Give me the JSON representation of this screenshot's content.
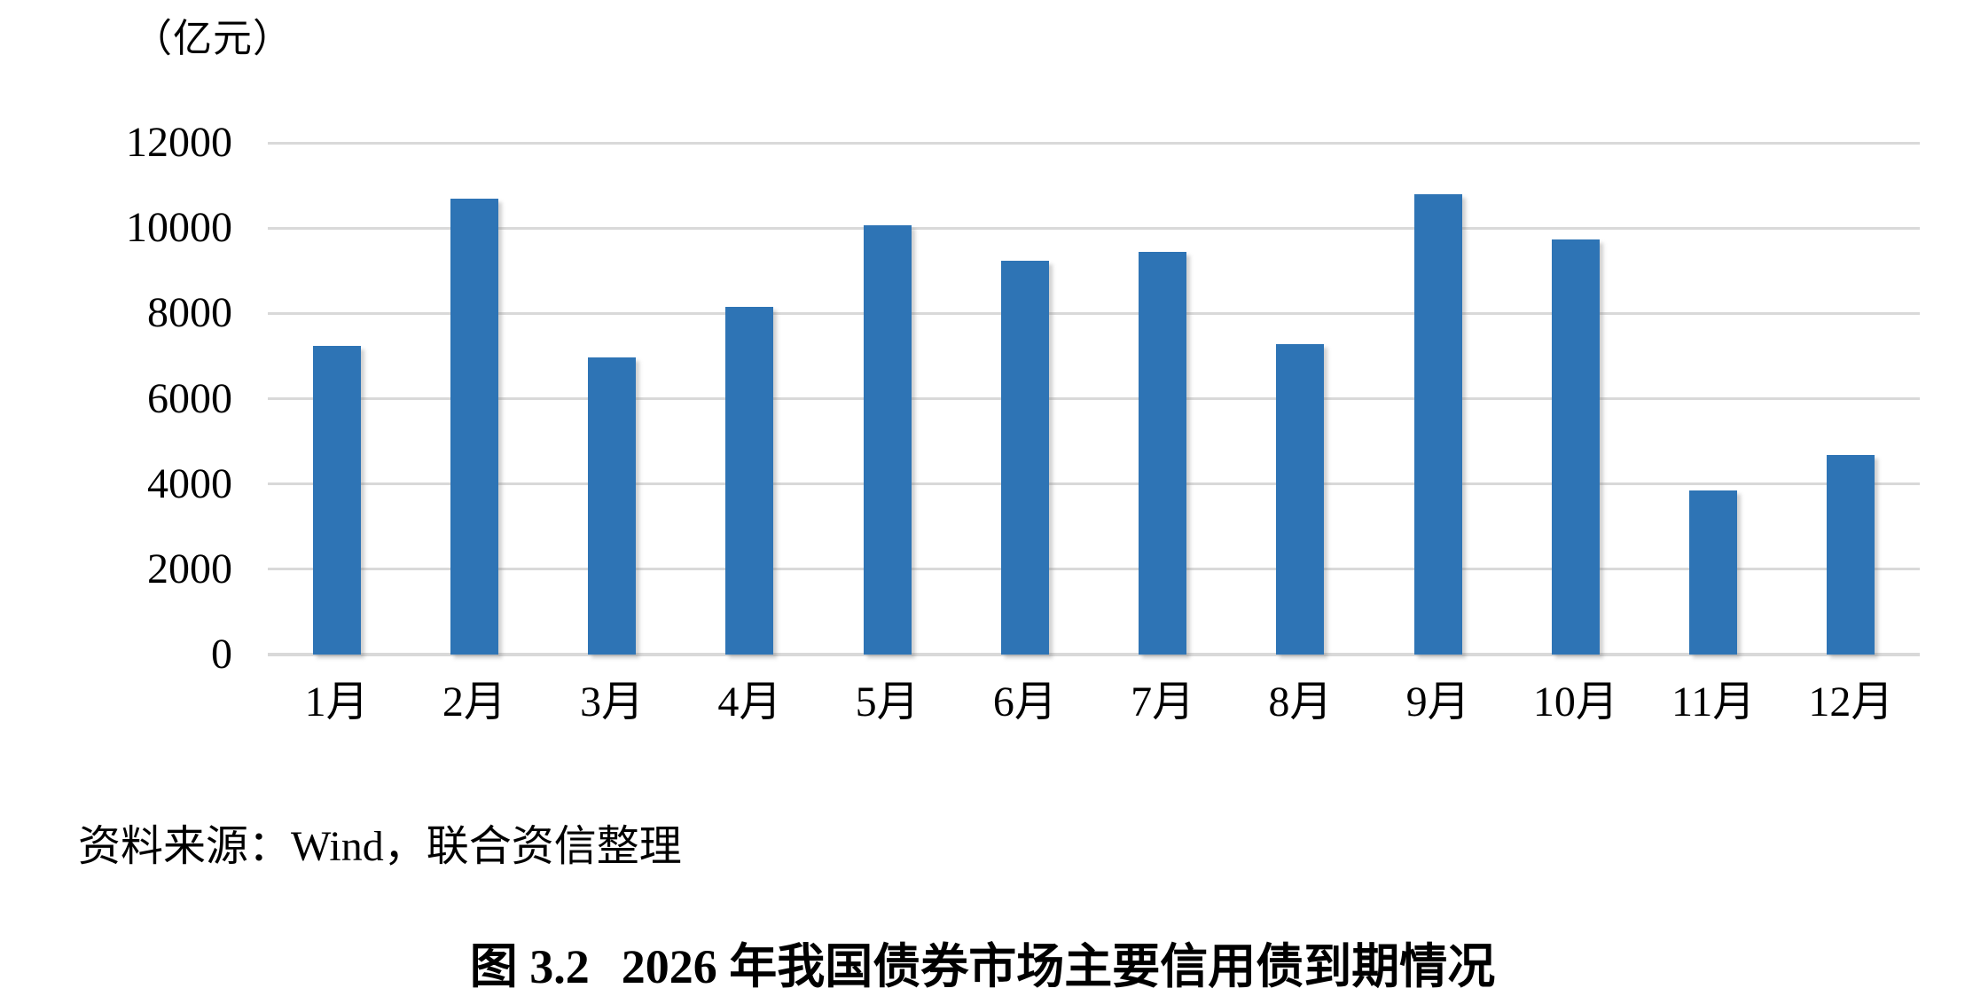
{
  "chart_data": {
    "type": "bar",
    "title": "",
    "unit_label": "（亿元）",
    "xlabel": "",
    "ylabel": "（亿元）",
    "categories": [
      "1月",
      "2月",
      "3月",
      "4月",
      "5月",
      "6月",
      "7月",
      "8月",
      "9月",
      "10月",
      "11月",
      "12月"
    ],
    "values": [
      7230,
      10700,
      6960,
      8150,
      10070,
      9240,
      9440,
      7270,
      10800,
      9740,
      3850,
      4680
    ],
    "y_ticks": [
      0,
      2000,
      4000,
      6000,
      8000,
      10000,
      12000
    ],
    "ylim": [
      0,
      12000
    ],
    "grid": "horizontal",
    "legend_position": "none",
    "bar_color": "#2E74B5",
    "gridline_color": "#D9D9D9"
  },
  "source_note": "资料来源：Wind，联合资信整理",
  "caption": {
    "prefix": "图 3.2",
    "title": "2026 年我国债券市场主要信用债到期情况"
  }
}
